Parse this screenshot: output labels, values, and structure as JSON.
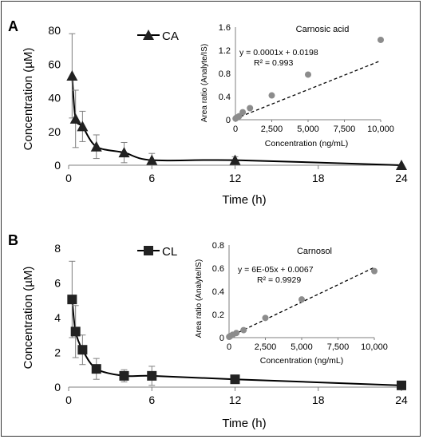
{
  "panels": [
    {
      "letter": "A",
      "chart_data": {
        "type": "line",
        "xlabel": "Time (h)",
        "ylabel": "Concentration (µM)",
        "xlim": [
          0,
          24
        ],
        "ylim": [
          0,
          80
        ],
        "xticks": [
          0,
          6,
          12,
          18,
          24
        ],
        "yticks": [
          0,
          20,
          40,
          60,
          80
        ],
        "series": [
          {
            "name": "CA",
            "marker": "triangle",
            "x": [
              0.25,
              0.5,
              1,
              2,
              4,
              6,
              12,
              24
            ],
            "y": [
              53,
              27.5,
              23,
              11,
              7.5,
              3,
              3,
              0
            ],
            "err": [
              25,
              17,
              9,
              7,
              6,
              4,
              2,
              0
            ]
          }
        ]
      },
      "inset": {
        "chart_data": {
          "type": "scatter",
          "title": "Carnosic acid",
          "xlabel": "Concentration (ng/mL)",
          "ylabel": "Area ratio (Analyte/IS)",
          "xlim": [
            0,
            10000
          ],
          "ylim": [
            0,
            1.6
          ],
          "xtick_labels": [
            "0",
            "2,500",
            "5,000",
            "7,500",
            "10,000"
          ],
          "ytick_labels": [
            "0",
            "0.4",
            "0.8",
            "1.2",
            "1.6"
          ],
          "xticks": [
            0,
            2500,
            5000,
            7500,
            10000
          ],
          "yticks": [
            0,
            0.4,
            0.8,
            1.2,
            1.6
          ],
          "x": [
            10,
            50,
            100,
            250,
            500,
            1000,
            2500,
            5000,
            10000
          ],
          "y": [
            0.02,
            0.03,
            0.04,
            0.06,
            0.13,
            0.2,
            0.42,
            0.78,
            1.38
          ],
          "trendline": {
            "slope": 0.0001,
            "intercept": 0.0198
          },
          "equation": "y = 0.0001x + 0.0198",
          "r2": "R² = 0.993"
        }
      }
    },
    {
      "letter": "B",
      "chart_data": {
        "type": "line",
        "xlabel": "Time (h)",
        "ylabel": "Concentration (µM)",
        "xlim": [
          0,
          24
        ],
        "ylim": [
          0,
          8
        ],
        "xticks": [
          0,
          6,
          12,
          18,
          24
        ],
        "yticks": [
          0,
          2,
          4,
          6,
          8
        ],
        "series": [
          {
            "name": "CL",
            "marker": "square",
            "x": [
              0.25,
              0.5,
              1,
              2,
              4,
              6,
              12,
              24
            ],
            "y": [
              5.05,
              3.2,
              2.15,
              1.05,
              0.65,
              0.65,
              0.45,
              0.1
            ],
            "err": [
              2.2,
              1.5,
              0.85,
              0.6,
              0.35,
              0.55,
              0.1,
              0
            ]
          }
        ]
      },
      "inset": {
        "chart_data": {
          "type": "scatter",
          "title": "Carnosol",
          "xlabel": "Concentration (ng/mL)",
          "ylabel": "Area ratio (Analyte/IS)",
          "xlim": [
            0,
            10000
          ],
          "ylim": [
            0,
            0.8
          ],
          "xtick_labels": [
            "0",
            "2,500",
            "5,000",
            "7,500",
            "10,000"
          ],
          "ytick_labels": [
            "0",
            "0.2",
            "0.4",
            "0.6",
            "0.8"
          ],
          "xticks": [
            0,
            2500,
            5000,
            7500,
            10000
          ],
          "yticks": [
            0,
            0.2,
            0.4,
            0.6,
            0.8
          ],
          "x": [
            10,
            50,
            100,
            250,
            500,
            1000,
            2500,
            5000,
            10000
          ],
          "y": [
            0.007,
            0.01,
            0.015,
            0.025,
            0.04,
            0.065,
            0.17,
            0.33,
            0.575
          ],
          "trendline": {
            "slope": 6e-05,
            "intercept": 0.0067
          },
          "equation": "y = 6E-05x + 0.0067",
          "r2": "R² = 0.9929"
        }
      }
    }
  ]
}
